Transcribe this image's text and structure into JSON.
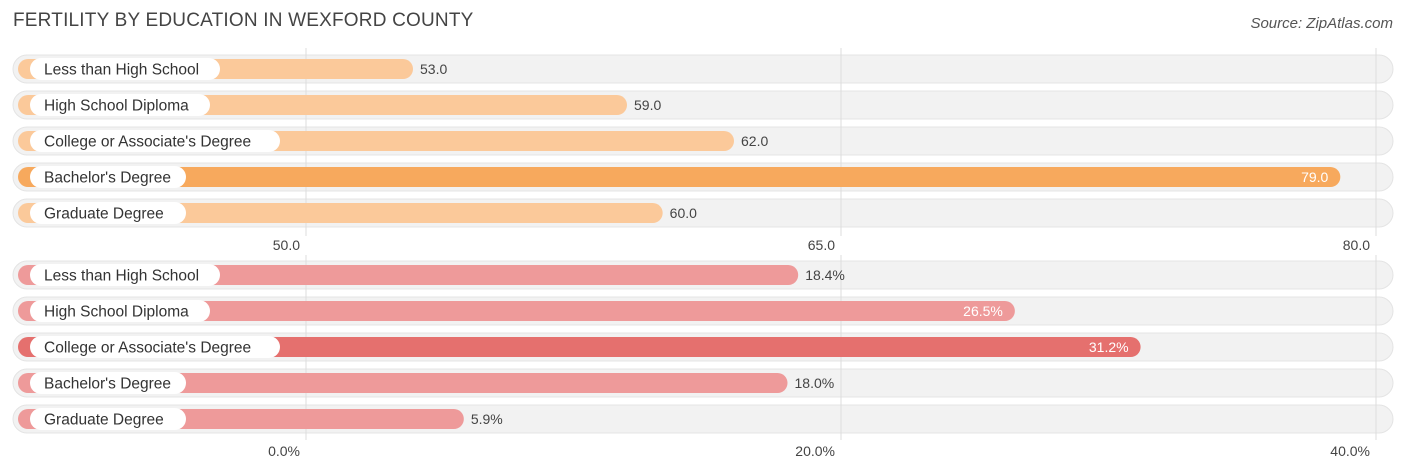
{
  "header": {
    "title": "FERTILITY BY EDUCATION IN WEXFORD COUNTY",
    "source": "Source: ZipAtlas.com"
  },
  "chart_data": [
    {
      "type": "bar",
      "orientation": "horizontal",
      "categories": [
        "Less than High School",
        "High School Diploma",
        "College or Associate's Degree",
        "Bachelor's Degree",
        "Graduate Degree"
      ],
      "values": [
        53.0,
        59.0,
        62.0,
        79.0,
        60.0
      ],
      "value_labels": [
        "53.0",
        "59.0",
        "62.0",
        "79.0",
        "60.0"
      ],
      "xlim": [
        50.0,
        80.0
      ],
      "ticks": [
        50.0,
        65.0,
        80.0
      ],
      "tick_labels": [
        "50.0",
        "65.0",
        "80.0"
      ],
      "grid": true,
      "colors": {
        "bar": "#fbc99a",
        "highlight": "#f7a95d"
      },
      "highlight_index": 3
    },
    {
      "type": "bar",
      "orientation": "horizontal",
      "categories": [
        "Less than High School",
        "High School Diploma",
        "College or Associate's Degree",
        "Bachelor's Degree",
        "Graduate Degree"
      ],
      "values": [
        18.4,
        26.5,
        31.2,
        18.0,
        5.9
      ],
      "value_labels": [
        "18.4%",
        "26.5%",
        "31.2%",
        "18.0%",
        "5.9%"
      ],
      "xlim": [
        0.0,
        40.0
      ],
      "ticks": [
        0.0,
        20.0,
        40.0
      ],
      "tick_labels": [
        "0.0%",
        "20.0%",
        "40.0%"
      ],
      "grid": true,
      "colors": {
        "bar": "#ee9a9a",
        "highlight": "#e5706e"
      },
      "highlight_index": 2
    }
  ]
}
